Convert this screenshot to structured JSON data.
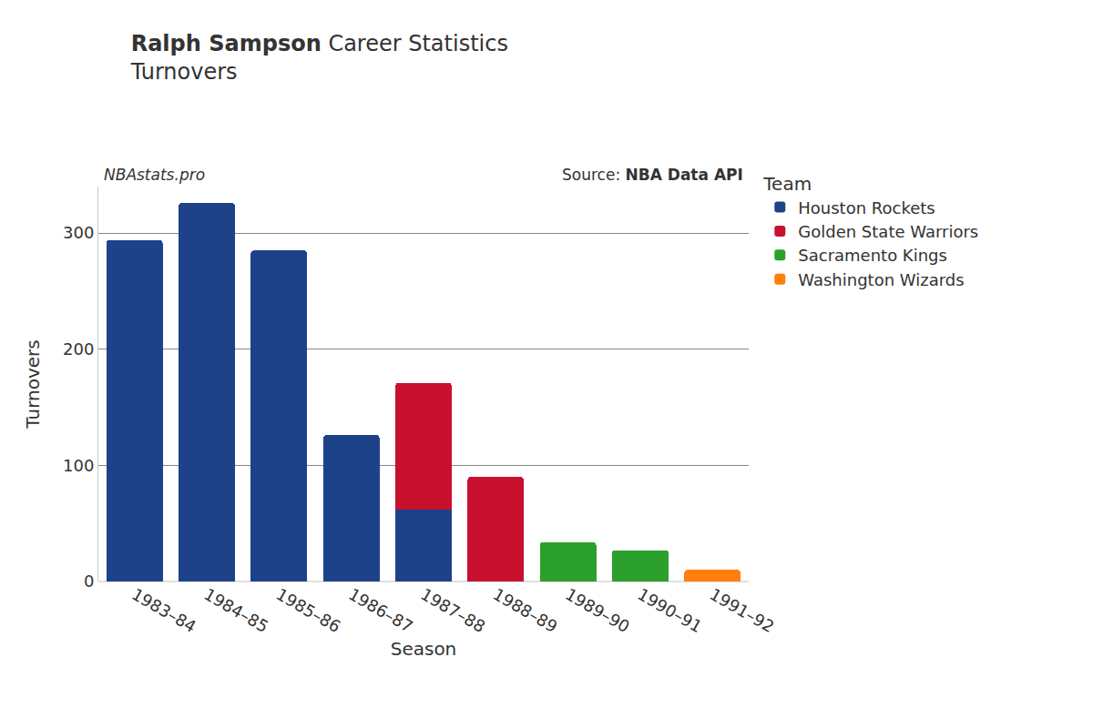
{
  "chart_data": {
    "type": "bar",
    "title": "Ralph Sampson Career Statistics",
    "title_bold": "Ralph Sampson",
    "subtitle": "Turnovers",
    "annotations": [
      "NBAstats.pro",
      "Source: NBA Data API"
    ],
    "x_label": "Season",
    "y_label": "Turnovers",
    "legend_title": "Team",
    "categories": [
      "1983–84",
      "1984–85",
      "1985–86",
      "1986–87",
      "1987–88",
      "1988–89",
      "1989–90",
      "1990–91",
      "1991–92"
    ],
    "series": [
      {
        "name": "Houston Rockets",
        "color": "#1d428a",
        "values": [
          294,
          326,
          285,
          126,
          62,
          null,
          null,
          null,
          null
        ]
      },
      {
        "name": "Golden State Warriors",
        "color": "#c8102e",
        "values": [
          null,
          null,
          null,
          null,
          109,
          90,
          null,
          null,
          null
        ]
      },
      {
        "name": "Sacramento Kings",
        "color": "#2ca02c",
        "values": [
          null,
          null,
          null,
          null,
          null,
          null,
          34,
          27,
          null
        ]
      },
      {
        "name": "Washington Wizards",
        "color": "#ff7f0e",
        "values": [
          null,
          null,
          null,
          null,
          null,
          null,
          null,
          null,
          10
        ]
      }
    ],
    "stacked": true,
    "ylim": [
      0,
      340
    ],
    "yticks": [
      0,
      100,
      200,
      300
    ],
    "grid": true,
    "legend": "right"
  }
}
